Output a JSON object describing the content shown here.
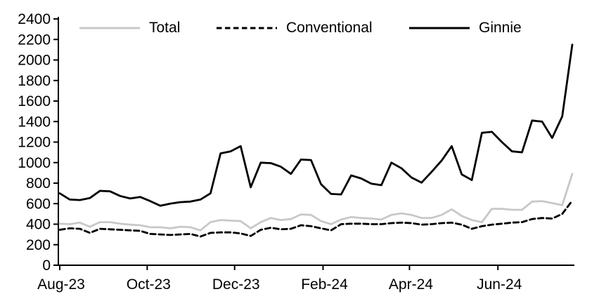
{
  "chart_data": {
    "type": "line",
    "title": "",
    "x_axis": {
      "tick_labels": [
        "Aug-23",
        "Oct-23",
        "Dec-23",
        "Feb-24",
        "Apr-24",
        "Jun-24"
      ],
      "tick_point_index": [
        0,
        8.7,
        17.4,
        26.2,
        34.8,
        43.6
      ]
    },
    "y_axis": {
      "min": 0,
      "max": 2400,
      "tick_step": 200,
      "tick_labels": [
        "0",
        "200",
        "400",
        "600",
        "800",
        "1000",
        "1200",
        "1400",
        "1600",
        "1800",
        "2000",
        "2200",
        "2400"
      ]
    },
    "grid": "off",
    "legend_position": "top",
    "series": [
      {
        "name": "Total",
        "color": "#c8c8c8",
        "line_style": "solid",
        "values": [
          405,
          400,
          415,
          375,
          420,
          420,
          405,
          395,
          390,
          370,
          370,
          360,
          375,
          370,
          340,
          420,
          440,
          435,
          430,
          360,
          420,
          460,
          440,
          450,
          495,
          490,
          430,
          400,
          445,
          470,
          460,
          455,
          445,
          490,
          505,
          490,
          460,
          460,
          490,
          545,
          480,
          440,
          420,
          550,
          550,
          540,
          540,
          620,
          625,
          605,
          585,
          890
        ]
      },
      {
        "name": "Conventional",
        "color": "#000000",
        "line_style": "dashed",
        "values": [
          345,
          360,
          355,
          315,
          355,
          350,
          345,
          340,
          335,
          305,
          300,
          295,
          300,
          305,
          280,
          315,
          320,
          320,
          310,
          285,
          345,
          365,
          350,
          355,
          390,
          380,
          360,
          340,
          400,
          405,
          405,
          400,
          400,
          410,
          415,
          410,
          395,
          400,
          410,
          415,
          395,
          355,
          380,
          395,
          405,
          415,
          420,
          450,
          460,
          455,
          500,
          630
        ]
      },
      {
        "name": "Ginnie",
        "color": "#000000",
        "line_style": "solid",
        "values": [
          700,
          640,
          635,
          655,
          725,
          720,
          675,
          650,
          665,
          625,
          580,
          600,
          615,
          620,
          640,
          700,
          1090,
          1110,
          1160,
          760,
          1000,
          995,
          960,
          890,
          1030,
          1025,
          790,
          695,
          690,
          875,
          845,
          795,
          780,
          1000,
          945,
          855,
          805,
          910,
          1020,
          1160,
          885,
          830,
          1290,
          1300,
          1200,
          1110,
          1100,
          1410,
          1400,
          1240,
          1450,
          2150
        ]
      }
    ]
  }
}
